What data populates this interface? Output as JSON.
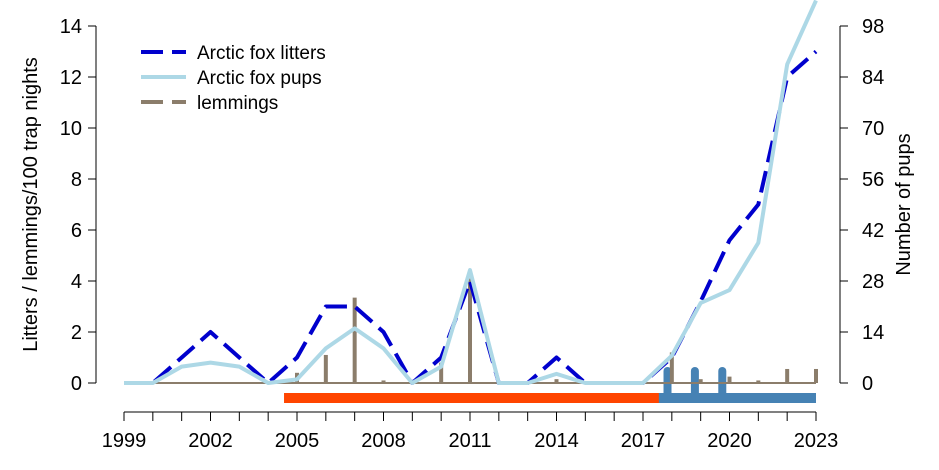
{
  "chart_data": {
    "type": "line",
    "title": "",
    "xlabel": "",
    "ylabel": "Litters / lemmings/100 trap nights",
    "y2label": "Number of pups",
    "x": [
      1999,
      2000,
      2001,
      2002,
      2003,
      2004,
      2005,
      2006,
      2007,
      2008,
      2009,
      2010,
      2011,
      2012,
      2013,
      2014,
      2015,
      2016,
      2017,
      2018,
      2019,
      2020,
      2021,
      2022,
      2023
    ],
    "xticks": [
      "1999",
      "2002",
      "2005",
      "2008",
      "2011",
      "2014",
      "2017",
      "2020",
      "2023"
    ],
    "xtick_values": [
      1999,
      2002,
      2005,
      2008,
      2011,
      2014,
      2017,
      2020,
      2023
    ],
    "xlim": [
      1999,
      2023
    ],
    "ylim": [
      0,
      14
    ],
    "yticks": [
      "0",
      "2",
      "4",
      "6",
      "8",
      "10",
      "12",
      "14"
    ],
    "y2lim": [
      0,
      98
    ],
    "y2ticks": [
      "0",
      "14",
      "28",
      "42",
      "56",
      "70",
      "84",
      "98"
    ],
    "legend_position": "top-left",
    "series": [
      {
        "name": "Arctic fox litters",
        "axis": "left",
        "style": "dashed",
        "color": "#0000CD",
        "values": [
          0,
          0,
          1,
          2,
          1,
          0,
          1,
          3,
          3,
          2,
          0,
          1,
          4,
          0,
          0,
          1,
          0,
          0,
          0,
          1,
          3.2,
          5.6,
          7,
          12,
          13
        ]
      },
      {
        "name": "Arctic fox pups",
        "axis": "right",
        "style": "solid",
        "color": "#ADD8E6",
        "values": [
          0,
          0,
          4.5,
          5.6,
          4.5,
          0,
          1,
          9.5,
          15,
          9.5,
          0,
          4.5,
          31,
          0,
          0,
          2.5,
          0,
          0,
          0,
          7.5,
          22,
          25.5,
          38.5,
          87.5,
          105
        ]
      },
      {
        "name": "lemmings",
        "axis": "left",
        "style": "bars",
        "color": "#8B7D6B",
        "values": [
          0,
          0,
          0,
          0,
          0,
          0,
          0.4,
          1.1,
          3.35,
          0.1,
          0,
          0.8,
          4.1,
          0,
          0.05,
          0.15,
          0,
          0.05,
          0.05,
          1.2,
          0.15,
          0.25,
          0.1,
          0.55,
          0.55
        ]
      }
    ],
    "periods": [
      {
        "name": "red-period",
        "start": 2004.55,
        "end": 2023,
        "color": "#FF4500"
      },
      {
        "name": "blue-period",
        "start": 2017.55,
        "end": 2023,
        "color": "#4682B4"
      }
    ],
    "blue_markers": [
      2017.85,
      2018.8,
      2019.75
    ]
  }
}
